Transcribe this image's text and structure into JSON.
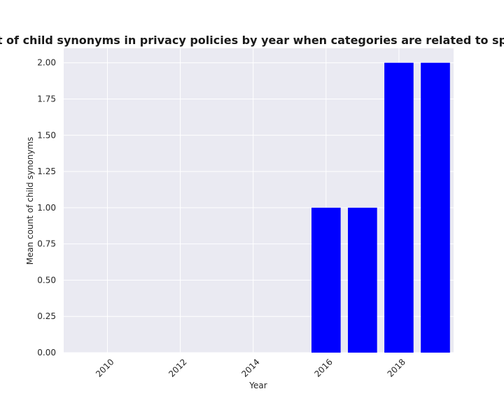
{
  "chart_data": {
    "type": "bar",
    "title": "Mean count of child synonyms in privacy policies by year when categories are related to sports;vehicles",
    "xlabel": "Year",
    "ylabel": "Mean count of child synonyms",
    "x": [
      2016,
      2017,
      2018,
      2019
    ],
    "values": [
      1.0,
      1.0,
      2.0,
      2.0
    ],
    "xlim": [
      2008.8,
      2019.5
    ],
    "ylim": [
      0.0,
      2.1
    ],
    "xticks": [
      "2010",
      "2012",
      "2014",
      "2016",
      "2018"
    ],
    "yticks": [
      "0.00",
      "0.25",
      "0.50",
      "0.75",
      "1.00",
      "1.25",
      "1.50",
      "1.75",
      "2.00"
    ],
    "bar_color": "#0000ff",
    "background_color": "#eaeaf2",
    "grid_color": "#ffffff",
    "grid": true
  }
}
